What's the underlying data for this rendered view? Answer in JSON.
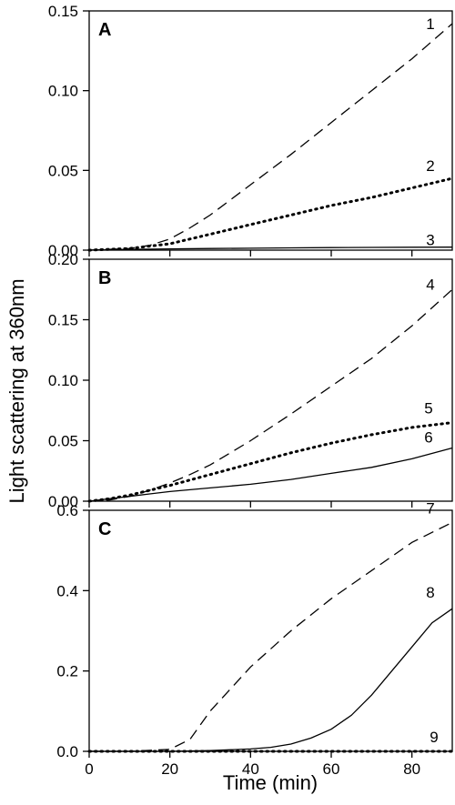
{
  "chart_data": {
    "type": "line",
    "xlabel": "Time (min)",
    "ylabel": "Light scattering at 360nm",
    "xlim": [
      0,
      90
    ],
    "xticks": [
      "0",
      "20",
      "40",
      "60",
      "80"
    ],
    "xtick_values": [
      0,
      20,
      40,
      60,
      80
    ],
    "grid": false,
    "panels": [
      {
        "letter": "A",
        "ylim": [
          0,
          0.15
        ],
        "yticks": [
          "0.00",
          "0.05",
          "0.10",
          "0.15"
        ],
        "ytick_values": [
          0,
          0.05,
          0.1,
          0.15
        ],
        "series": [
          {
            "label": "1",
            "style": "dashed",
            "x": [
              0,
              10,
              15,
              20,
              25,
              30,
              40,
              50,
              60,
              70,
              80,
              90
            ],
            "y": [
              0,
              0.001,
              0.003,
              0.007,
              0.014,
              0.022,
              0.041,
              0.06,
              0.08,
              0.1,
              0.12,
              0.142
            ]
          },
          {
            "label": "2",
            "style": "dotted",
            "x": [
              0,
              10,
              20,
              30,
              40,
              50,
              60,
              70,
              80,
              90
            ],
            "y": [
              0,
              0.001,
              0.004,
              0.01,
              0.016,
              0.022,
              0.028,
              0.033,
              0.039,
              0.045
            ]
          },
          {
            "label": "3",
            "style": "solid",
            "x": [
              0,
              10,
              20,
              30,
              40,
              50,
              60,
              70,
              80,
              90
            ],
            "y": [
              0,
              0.0005,
              0.0008,
              0.001,
              0.0012,
              0.0014,
              0.0016,
              0.0017,
              0.0018,
              0.0019
            ]
          }
        ]
      },
      {
        "letter": "B",
        "ylim": [
          0,
          0.2
        ],
        "yticks": [
          "0.00",
          "0.05",
          "0.10",
          "0.15",
          "0.20"
        ],
        "ytick_values": [
          0,
          0.05,
          0.1,
          0.15,
          0.2
        ],
        "series": [
          {
            "label": "4",
            "style": "dashed",
            "x": [
              0,
              5,
              10,
              15,
              20,
              25,
              30,
              40,
              50,
              60,
              70,
              80,
              90
            ],
            "y": [
              0,
              0.001,
              0.004,
              0.009,
              0.015,
              0.022,
              0.03,
              0.05,
              0.072,
              0.095,
              0.118,
              0.145,
              0.175
            ]
          },
          {
            "label": "5",
            "style": "dotted",
            "x": [
              0,
              5,
              10,
              15,
              20,
              30,
              40,
              50,
              60,
              70,
              80,
              90
            ],
            "y": [
              0,
              0.002,
              0.005,
              0.009,
              0.013,
              0.022,
              0.031,
              0.04,
              0.048,
              0.055,
              0.061,
              0.065
            ]
          },
          {
            "label": "6",
            "style": "solid",
            "x": [
              0,
              5,
              10,
              15,
              20,
              30,
              40,
              50,
              60,
              70,
              80,
              90
            ],
            "y": [
              0,
              0.002,
              0.004,
              0.006,
              0.008,
              0.011,
              0.014,
              0.018,
              0.023,
              0.028,
              0.035,
              0.044
            ]
          }
        ]
      },
      {
        "letter": "C",
        "ylim": [
          0,
          0.6
        ],
        "yticks": [
          "0.0",
          "0.2",
          "0.4",
          "0.6"
        ],
        "ytick_values": [
          0,
          0.2,
          0.4,
          0.6
        ],
        "series": [
          {
            "label": "7",
            "style": "dashed",
            "x": [
              0,
              10,
              20,
              25,
              30,
              40,
              50,
              60,
              70,
              80,
              90
            ],
            "y": [
              0,
              0.0,
              0.005,
              0.03,
              0.1,
              0.21,
              0.3,
              0.38,
              0.45,
              0.52,
              0.57
            ]
          },
          {
            "label": "8",
            "style": "solid",
            "x": [
              0,
              20,
              30,
              40,
              45,
              50,
              55,
              60,
              65,
              70,
              75,
              80,
              85,
              90
            ],
            "y": [
              0,
              0,
              0.002,
              0.006,
              0.01,
              0.018,
              0.033,
              0.055,
              0.09,
              0.14,
              0.2,
              0.26,
              0.32,
              0.355
            ]
          },
          {
            "label": "9",
            "style": "dotted",
            "x": [
              0,
              90
            ],
            "y": [
              0,
              0
            ]
          }
        ]
      }
    ]
  }
}
